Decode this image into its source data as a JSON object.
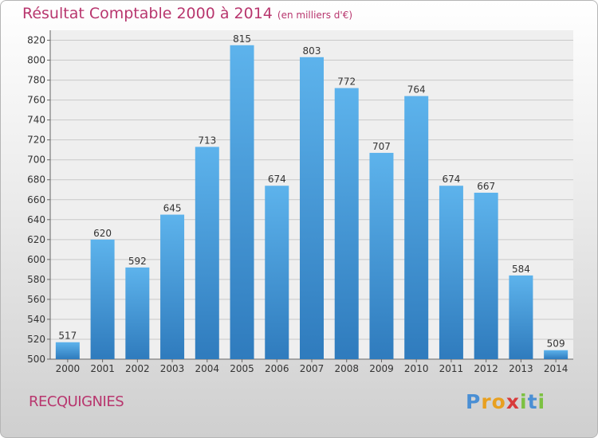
{
  "chart_data": {
    "type": "bar",
    "title": "Résultat Comptable 2000 à 2014",
    "unit_note": "(en milliers d'€)",
    "xlabel": "",
    "ylabel": "",
    "categories": [
      "2000",
      "2001",
      "2002",
      "2003",
      "2004",
      "2005",
      "2006",
      "2007",
      "2008",
      "2009",
      "2010",
      "2011",
      "2012",
      "2013",
      "2014"
    ],
    "values": [
      517,
      620,
      592,
      645,
      713,
      815,
      674,
      803,
      772,
      707,
      764,
      674,
      667,
      584,
      509
    ],
    "value_labels": [
      "517",
      "620",
      "592",
      "645",
      "713",
      "815",
      "674",
      "803",
      "772",
      "707",
      "764",
      "674",
      "667",
      "584",
      "509"
    ],
    "ylim": [
      500,
      830
    ],
    "yticks": [
      "500",
      "520",
      "540",
      "560",
      "580",
      "600",
      "620",
      "640",
      "660",
      "680",
      "700",
      "720",
      "740",
      "760",
      "780",
      "800",
      "820"
    ],
    "grid": true,
    "legend": "none"
  },
  "footer": {
    "city": "RECQUIGNIES",
    "logo_letters": [
      "P",
      "r",
      "o",
      "x",
      "i",
      "t",
      "i"
    ]
  },
  "colors": {
    "title": "#b8366e",
    "bar_top": "#5db3ec",
    "bar_bottom": "#2f7bbd",
    "logo": [
      "#4a8fd4",
      "#e8a020",
      "#e8a020",
      "#d83a3a",
      "#7cc142",
      "#4a8fd4",
      "#7cc142"
    ]
  }
}
